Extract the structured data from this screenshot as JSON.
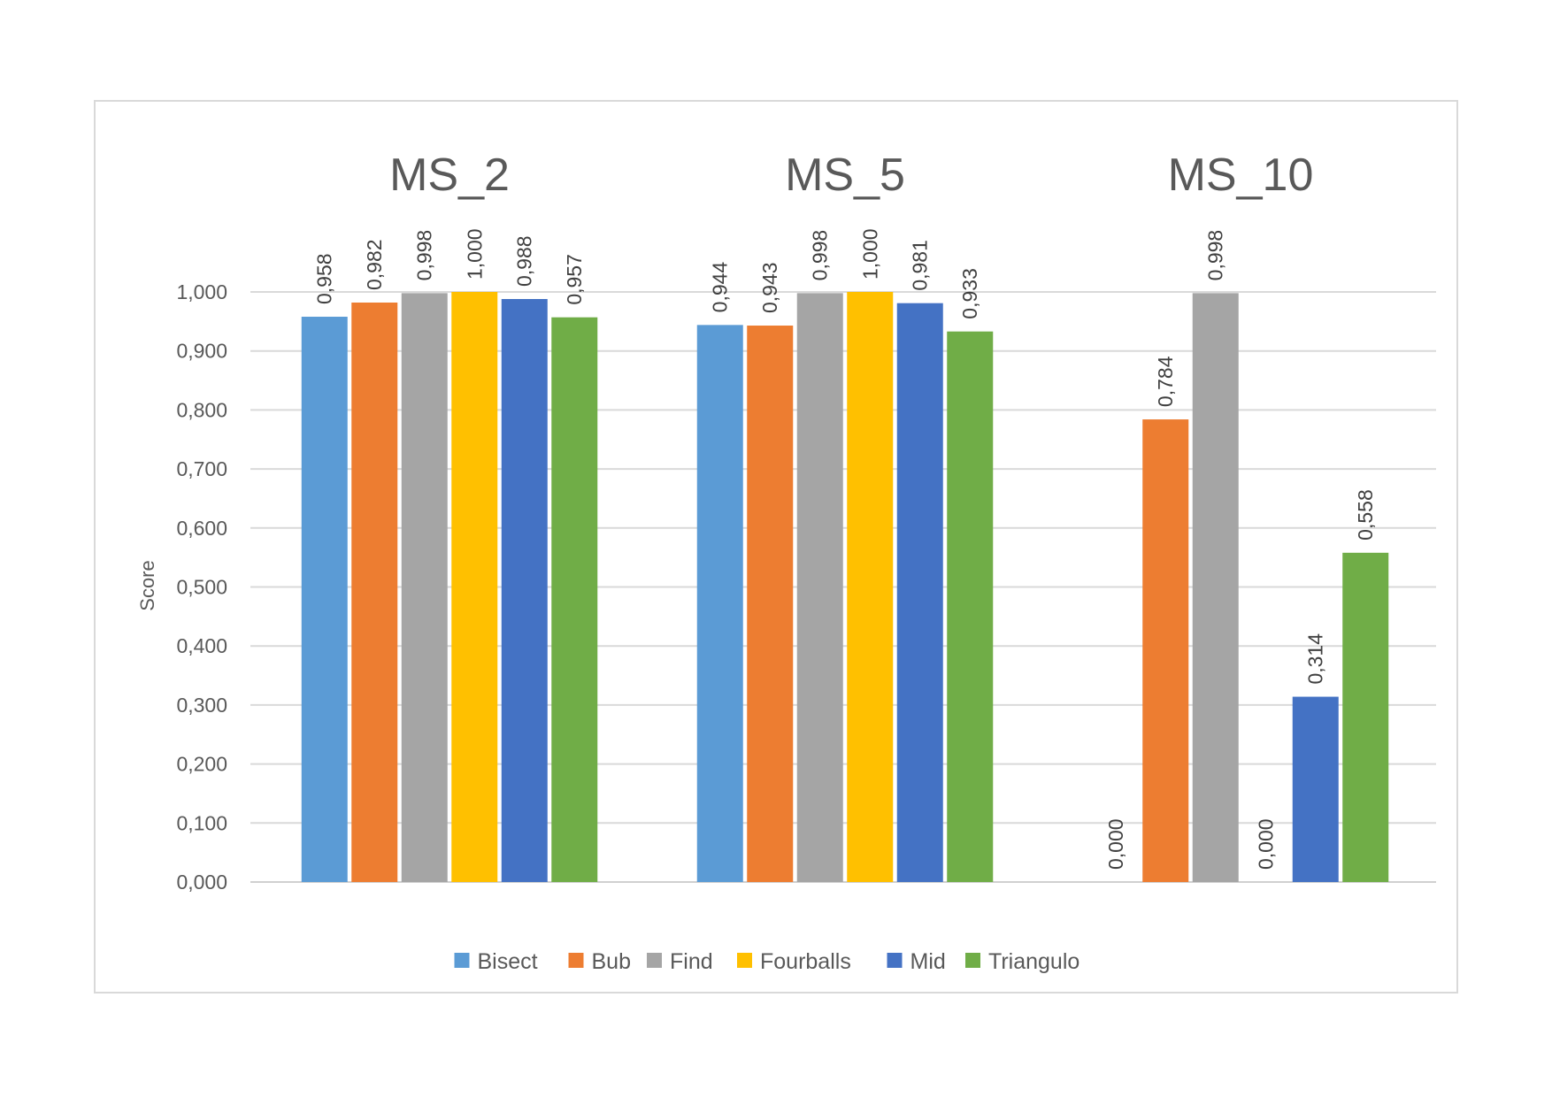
{
  "chart_data": {
    "type": "bar",
    "categories": [
      "MS_2",
      "MS_5",
      "MS_10"
    ],
    "ylabel": "Score",
    "ylim": [
      0,
      1
    ],
    "yticks": [
      "0,000",
      "0,100",
      "0,200",
      "0,300",
      "0,400",
      "0,500",
      "0,600",
      "0,700",
      "0,800",
      "0,900",
      "1,000"
    ],
    "grid": true,
    "legend": "bottom",
    "series": [
      {
        "name": "Bisect",
        "color": "#5b9bd5",
        "values": [
          0.958,
          0.944,
          0.0
        ],
        "labels": [
          "0,958",
          "0,944",
          "0,000"
        ]
      },
      {
        "name": "Bub",
        "color": "#ed7d31",
        "values": [
          0.982,
          0.943,
          0.784
        ],
        "labels": [
          "0,982",
          "0,943",
          "0,784"
        ]
      },
      {
        "name": "Find",
        "color": "#a5a5a5",
        "values": [
          0.998,
          0.998,
          0.998
        ],
        "labels": [
          "0,998",
          "0,998",
          "0,998"
        ]
      },
      {
        "name": "Fourballs",
        "color": "#ffc000",
        "values": [
          1.0,
          1.0,
          0.0
        ],
        "labels": [
          "1,000",
          "1,000",
          "0,000"
        ]
      },
      {
        "name": "Mid",
        "color": "#4472c4",
        "values": [
          0.988,
          0.981,
          0.314
        ],
        "labels": [
          "0,988",
          "0,981",
          "0,314"
        ]
      },
      {
        "name": "Triangulo",
        "color": "#70ad47",
        "values": [
          0.957,
          0.933,
          0.558
        ],
        "labels": [
          "0,957",
          "0,933",
          "0,558"
        ]
      }
    ]
  }
}
